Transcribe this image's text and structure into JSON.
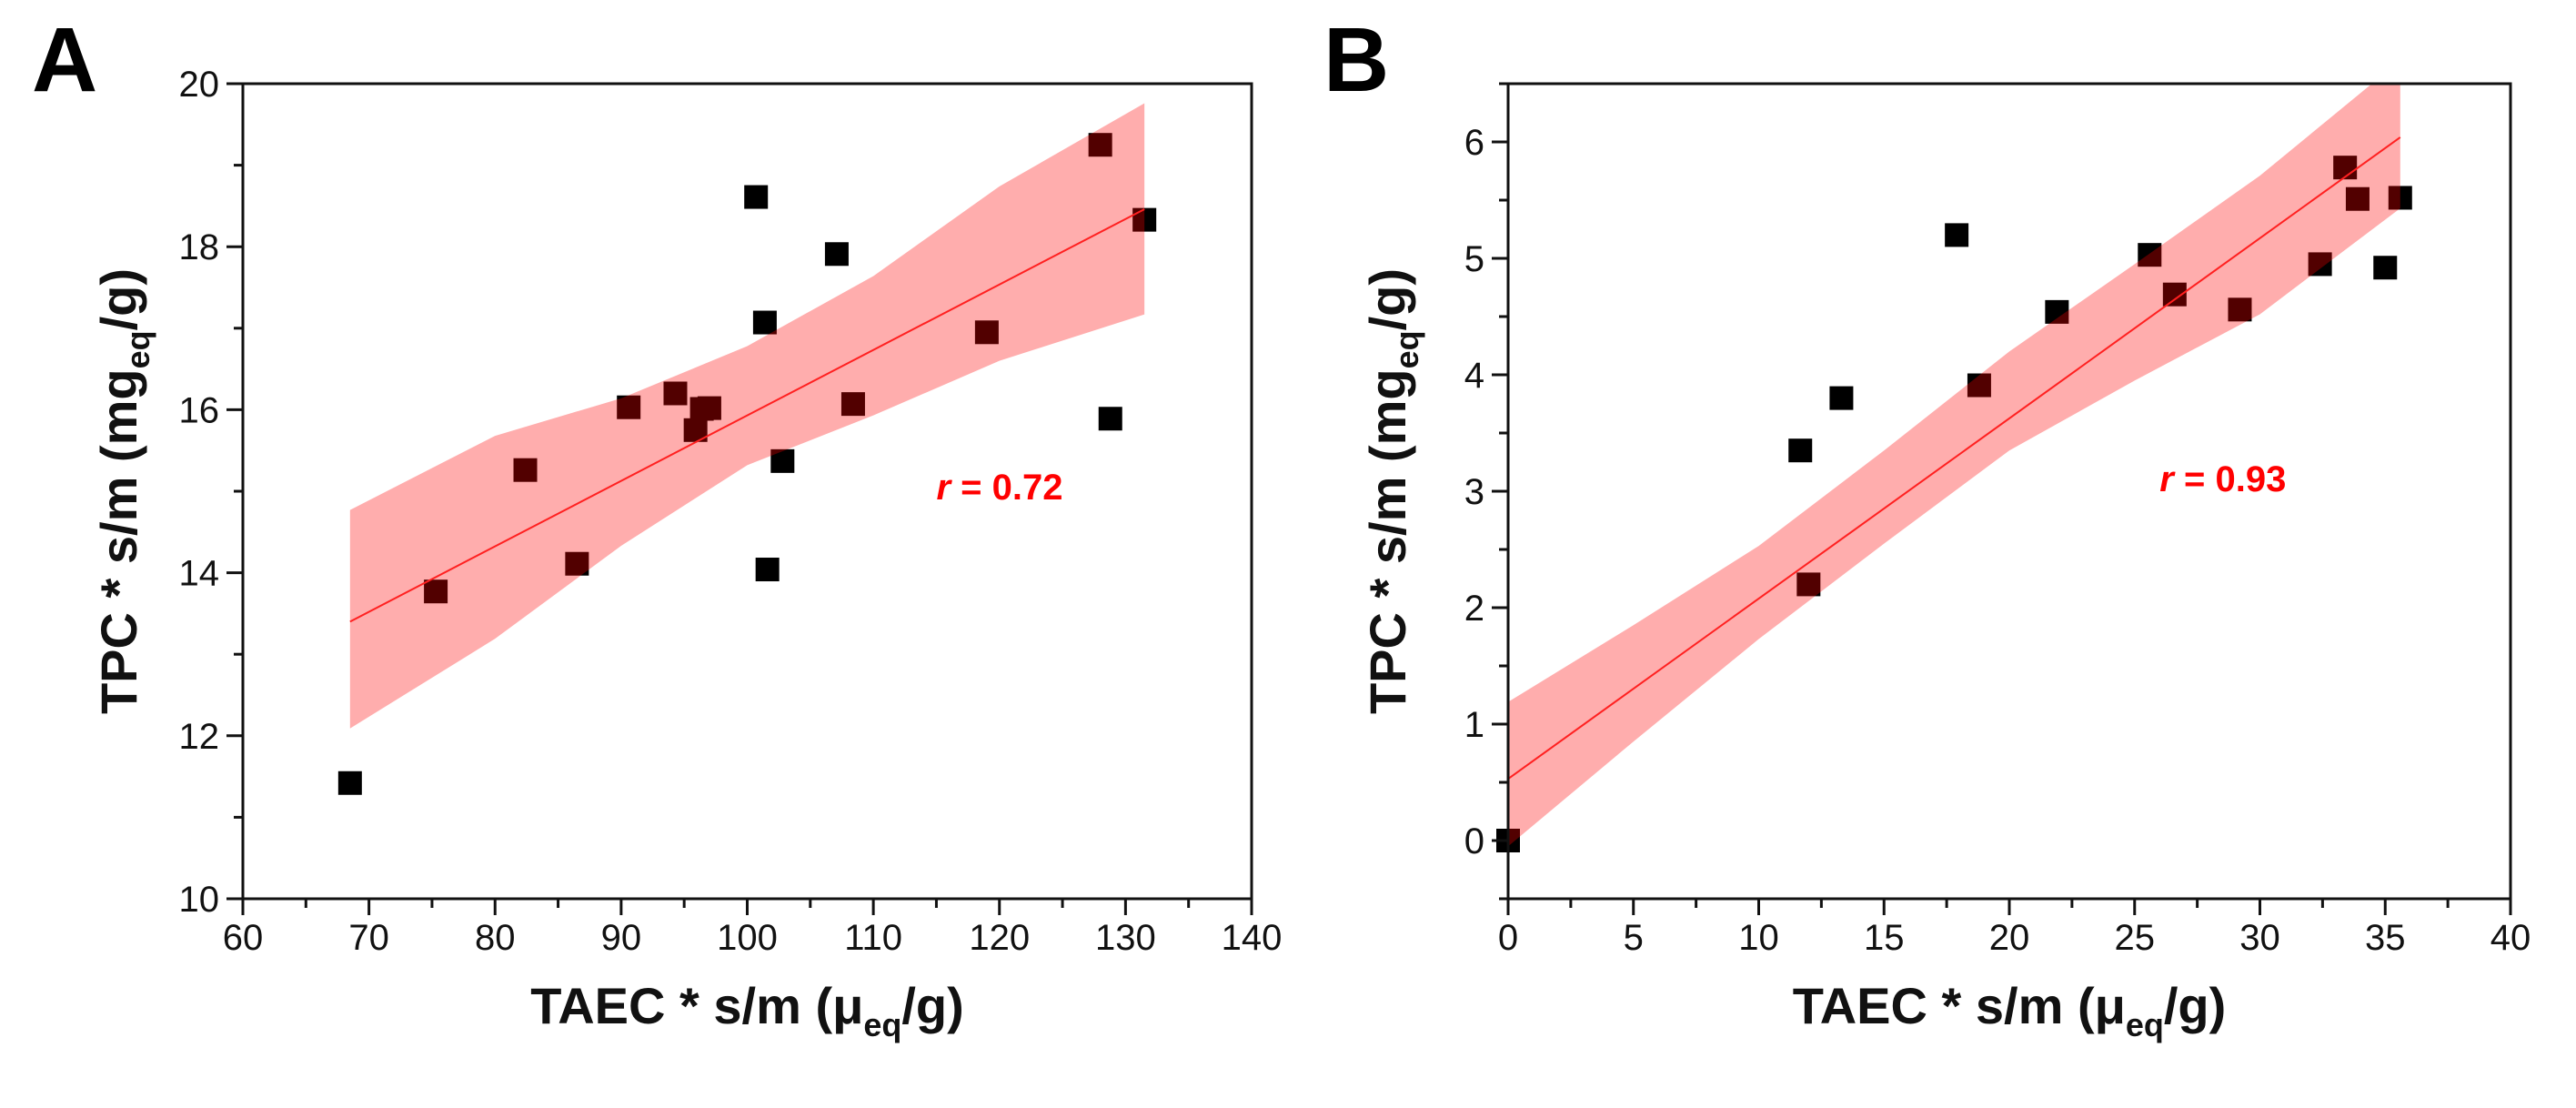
{
  "chart_data": [
    {
      "panel": "A",
      "type": "scatter",
      "xlabel": "TAEC * s/m (μeq/g)",
      "xlabel_main": "TAEC * s/m (μ",
      "xlabel_sub": "eq",
      "xlabel_end": "/g)",
      "ylabel_main": "TPC * s/m (mg",
      "ylabel_sub": "eq",
      "ylabel_end": "/g)",
      "xlim": [
        60,
        140
      ],
      "ylim": [
        10,
        20
      ],
      "xticks": [
        60,
        70,
        80,
        90,
        100,
        110,
        120,
        130,
        140
      ],
      "yticks": [
        10,
        12,
        14,
        16,
        18,
        20
      ],
      "annotation": {
        "r_symbol": "r",
        "r_text": " = 0.72",
        "x": 115,
        "y": 14.9
      },
      "points": [
        [
          68.5,
          11.42
        ],
        [
          75.3,
          13.77
        ],
        [
          82.4,
          15.26
        ],
        [
          86.5,
          14.11
        ],
        [
          90.6,
          16.03
        ],
        [
          94.3,
          16.2
        ],
        [
          95.9,
          15.75
        ],
        [
          96.4,
          16.01
        ],
        [
          97.0,
          16.02
        ],
        [
          100.7,
          18.61
        ],
        [
          101.4,
          17.07
        ],
        [
          101.6,
          14.04
        ],
        [
          102.8,
          15.37
        ],
        [
          107.1,
          17.91
        ],
        [
          108.4,
          16.07
        ],
        [
          119.0,
          16.95
        ],
        [
          128.0,
          19.25
        ],
        [
          128.8,
          15.89
        ],
        [
          131.5,
          18.33
        ]
      ],
      "fit_line": [
        [
          68.5,
          13.4
        ],
        [
          131.5,
          18.46
        ]
      ],
      "confidence_band": {
        "x": [
          68.5,
          80,
          90,
          100,
          110,
          120,
          131.5
        ],
        "upper": [
          14.77,
          15.68,
          16.14,
          16.78,
          17.64,
          18.74,
          19.76
        ],
        "lower": [
          12.09,
          13.19,
          14.33,
          15.32,
          15.93,
          16.6,
          17.17
        ]
      }
    },
    {
      "panel": "B",
      "type": "scatter",
      "xlabel": "TAEC * s/m (μeq/g)",
      "xlabel_main": "TAEC * s/m (μ",
      "xlabel_sub": "eq",
      "xlabel_end": "/g)",
      "ylabel_main": "TPC * s/m (mg",
      "ylabel_sub": "eq",
      "ylabel_end": "/g)",
      "xlim": [
        0,
        40
      ],
      "ylim": [
        -0.5,
        6.5
      ],
      "xticks": [
        0,
        5,
        10,
        15,
        20,
        25,
        30,
        35,
        40
      ],
      "yticks": [
        0,
        1,
        2,
        3,
        4,
        5,
        6
      ],
      "annotation": {
        "r_symbol": "r",
        "r_text": " = 0.93",
        "x": 26,
        "y": 3.0
      },
      "points": [
        [
          0,
          0
        ],
        [
          11.66,
          3.35
        ],
        [
          11.99,
          2.2
        ],
        [
          13.3,
          3.8
        ],
        [
          17.9,
          5.2
        ],
        [
          18.8,
          3.91
        ],
        [
          21.9,
          4.54
        ],
        [
          25.6,
          5.03
        ],
        [
          26.6,
          4.69
        ],
        [
          29.2,
          4.56
        ],
        [
          32.4,
          4.95
        ],
        [
          33.4,
          5.78
        ],
        [
          33.9,
          5.51
        ],
        [
          35.0,
          4.92
        ],
        [
          35.6,
          5.52
        ]
      ],
      "fit_line": [
        [
          0,
          0.53
        ],
        [
          35.6,
          6.04
        ]
      ],
      "confidence_band": {
        "x": [
          0,
          5,
          10,
          15,
          20,
          25,
          30,
          35.6
        ],
        "upper": [
          1.19,
          1.85,
          2.53,
          3.35,
          4.2,
          4.95,
          5.71,
          6.7
        ],
        "lower": [
          -0.05,
          0.85,
          1.73,
          2.55,
          3.35,
          3.95,
          4.52,
          5.43
        ]
      }
    }
  ],
  "colors": {
    "band": "rgba(255,0,0,0.32)",
    "fit": "#ff2020",
    "point": "#000000",
    "annotation": "#ff0000"
  }
}
